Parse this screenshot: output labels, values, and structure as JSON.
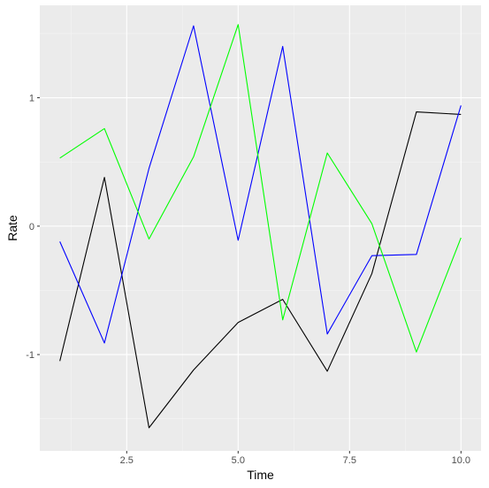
{
  "chart_data": {
    "type": "line",
    "title": "",
    "xlabel": "Time",
    "ylabel": "Rate",
    "xlim": [
      0.55,
      10.45
    ],
    "ylim": [
      -1.75,
      1.72
    ],
    "x_ticks": [
      2.5,
      5.0,
      7.5,
      10.0
    ],
    "x_tick_labels": [
      "2.5",
      "5.0",
      "7.5",
      "10.0"
    ],
    "y_ticks": [
      -1,
      0,
      1
    ],
    "y_tick_labels": [
      "-1",
      "0",
      "1"
    ],
    "grid": true,
    "legend": "none",
    "x": [
      1,
      2,
      3,
      4,
      5,
      6,
      7,
      8,
      9,
      10
    ],
    "series": [
      {
        "color": "#000000",
        "values": [
          -1.05,
          0.38,
          -1.57,
          -1.12,
          -0.75,
          -0.57,
          -1.13,
          -0.37,
          0.89,
          0.87
        ]
      },
      {
        "color": "#0000ff",
        "values": [
          -0.12,
          -0.91,
          0.45,
          1.56,
          -0.11,
          1.4,
          -0.84,
          -0.23,
          -0.22,
          0.94
        ]
      },
      {
        "color": "#00ff00",
        "values": [
          0.53,
          0.76,
          -0.1,
          0.54,
          1.57,
          -0.73,
          0.57,
          0.02,
          -0.98,
          -0.09
        ]
      }
    ],
    "colors": {
      "panel": "#ebebeb",
      "grid_major": "#ffffff",
      "grid_minor": "#f5f5f5",
      "tick": "#333333"
    }
  }
}
